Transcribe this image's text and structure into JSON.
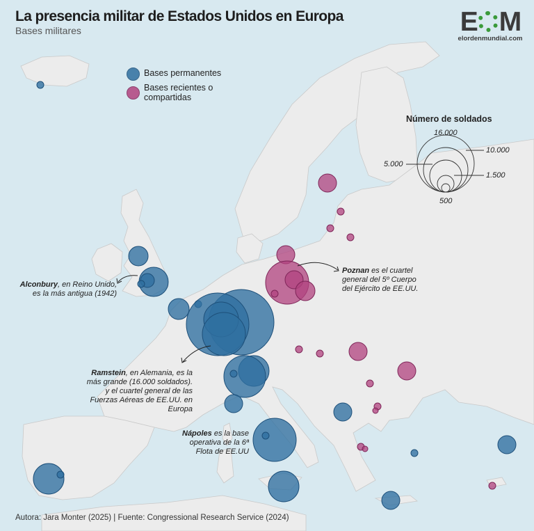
{
  "title": "La presencia militar de Estados Unidos en Europa",
  "subtitle": "Bases militares",
  "logo": {
    "mark_left": "E",
    "mark_right": "M",
    "url": "elordenmundial.com"
  },
  "legend": {
    "permanent": {
      "label": "Bases permanentes",
      "color": "#2f6fa0"
    },
    "recent": {
      "label": "Bases recientes o compartidas",
      "color": "#b2437f"
    }
  },
  "size_legend": {
    "title": "Número de soldados",
    "levels": [
      "16.000",
      "10.000",
      "5.000",
      "1.500",
      "500"
    ]
  },
  "annotations": {
    "alconbury": {
      "bold": "Alconbury",
      "text": ", en Reino Unido, es la más antigua (1942)"
    },
    "poznan": {
      "bold": "Poznan",
      "text": " es el cuartel general del 5º Cuerpo del Ejército de EE.UU."
    },
    "ramstein": {
      "bold": "Ramstein",
      "text": ", en Alemania, es la más grande (16.000 soldados). y el cuartel general de las Fuerzas Aéreas de EE.UU. en Europa"
    },
    "napoles": {
      "bold": "Nápoles",
      "text": " es la base operativa de la 6ª Flota de EE.UU"
    }
  },
  "footer": "Autora: Jara Monter (2025) | Fuente: Congressional Research Service (2024)"
}
